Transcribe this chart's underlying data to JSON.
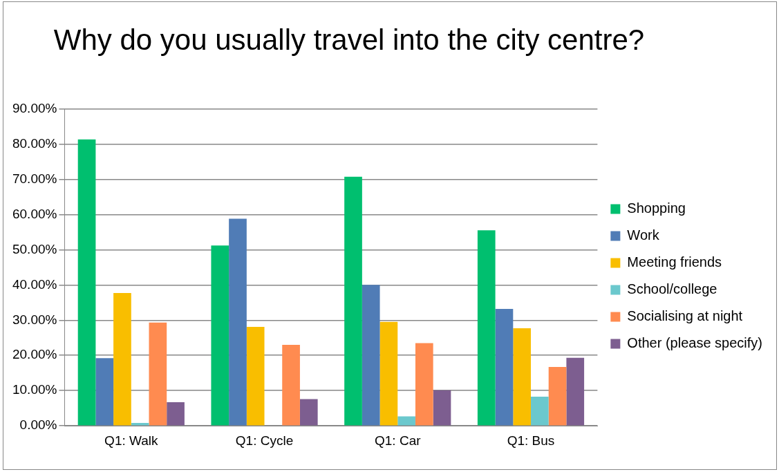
{
  "chart_data": {
    "type": "bar",
    "title": "Why do you usually travel into the city centre?",
    "categories": [
      "Q1: Walk",
      "Q1: Cycle",
      "Q1: Car",
      "Q1: Bus"
    ],
    "series": [
      {
        "name": "Shopping",
        "color": "#00bf6f",
        "values": [
          81.3,
          51.2,
          70.7,
          55.5
        ]
      },
      {
        "name": "Work",
        "color": "#507cb6",
        "values": [
          19.2,
          58.8,
          40.0,
          33.2
        ]
      },
      {
        "name": "Meeting friends",
        "color": "#f9be00",
        "values": [
          37.7,
          28.1,
          29.5,
          27.7
        ]
      },
      {
        "name": "School/college",
        "color": "#6bc8cd",
        "values": [
          0.8,
          0,
          2.7,
          8.3
        ]
      },
      {
        "name": "Socialising at night",
        "color": "#ff8b50",
        "values": [
          29.3,
          23.0,
          23.5,
          16.7
        ]
      },
      {
        "name": "Other (please specify)",
        "color": "#7d5e90",
        "values": [
          6.7,
          7.6,
          10.1,
          19.3
        ]
      }
    ],
    "ylim": [
      0,
      90
    ],
    "yticks": [
      {
        "value": 0,
        "label": "0.00%"
      },
      {
        "value": 10,
        "label": "10.00%"
      },
      {
        "value": 20,
        "label": "20.00%"
      },
      {
        "value": 30,
        "label": "30.00%"
      },
      {
        "value": 40,
        "label": "40.00%"
      },
      {
        "value": 50,
        "label": "50.00%"
      },
      {
        "value": 60,
        "label": "60.00%"
      },
      {
        "value": 70,
        "label": "70.00%"
      },
      {
        "value": 80,
        "label": "80.00%"
      },
      {
        "value": 90,
        "label": "90.00%"
      }
    ],
    "grid": "y",
    "legend": "right"
  }
}
